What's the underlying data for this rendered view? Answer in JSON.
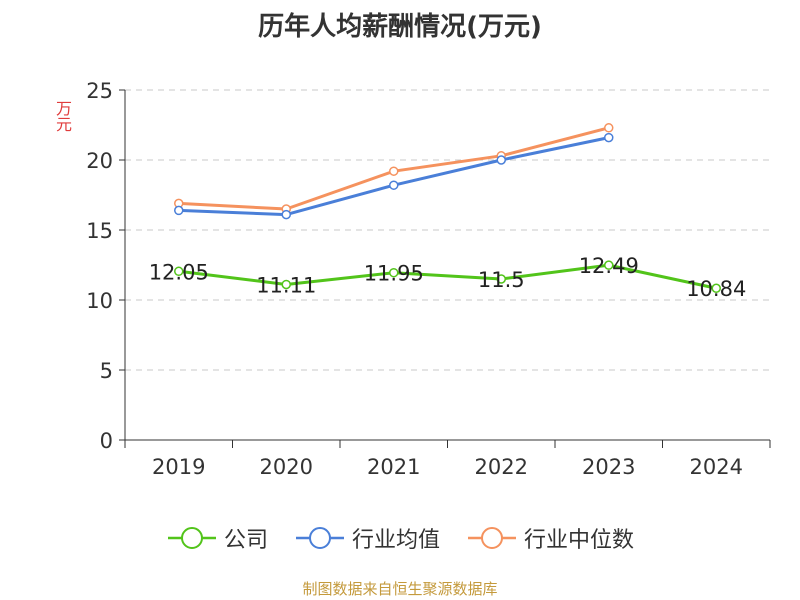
{
  "chart_data": {
    "type": "line",
    "title": "历年人均薪酬情况(万元)",
    "ylabel": "万元",
    "categories": [
      "2019",
      "2020",
      "2021",
      "2022",
      "2023",
      "2024"
    ],
    "ylim": [
      0,
      25
    ],
    "yticks": [
      0,
      5,
      10,
      15,
      20,
      25
    ],
    "grid": true,
    "legend_position": "bottom",
    "series": [
      {
        "name": "公司",
        "color": "#52c41a",
        "values": [
          12.05,
          11.11,
          11.95,
          11.5,
          12.49,
          10.84
        ],
        "labels": [
          "12.05",
          "11.11",
          "11.95",
          "11.5",
          "12.49",
          "10.84"
        ]
      },
      {
        "name": "行业均值",
        "color": "#4a7fd8",
        "values": [
          16.4,
          16.1,
          18.2,
          20.0,
          21.6,
          null
        ]
      },
      {
        "name": "行业中位数",
        "color": "#f5925e",
        "values": [
          16.9,
          16.5,
          19.2,
          20.3,
          22.3,
          null
        ]
      }
    ]
  },
  "source_note": "制图数据来自恒生聚源数据库"
}
